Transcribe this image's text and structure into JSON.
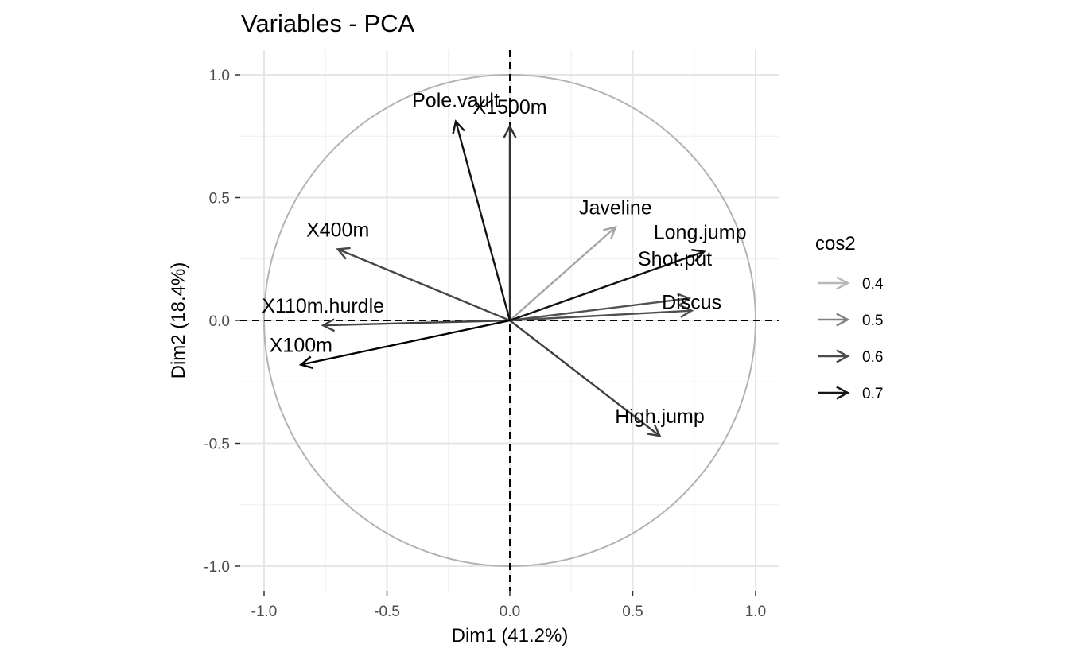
{
  "chart_data": {
    "type": "scatter",
    "title": "Variables - PCA",
    "xlabel": "Dim1 (41.2%)",
    "ylabel": "Dim2 (18.4%)",
    "xlim": [
      -1.1,
      1.1
    ],
    "ylim": [
      -1.1,
      1.1
    ],
    "x_ticks": [
      -1.0,
      -0.5,
      0.0,
      0.5,
      1.0
    ],
    "y_ticks": [
      -1.0,
      -0.5,
      0.0,
      0.5,
      1.0
    ],
    "x_tick_labels": [
      "-1.0",
      "-0.5",
      "0.0",
      "0.5",
      "1.0"
    ],
    "y_tick_labels": [
      "-1.0",
      "-0.5",
      "0.0",
      "0.5",
      "1.0"
    ],
    "grid": true,
    "correlation_circle": true,
    "reference_lines": [
      0,
      0
    ],
    "legend": {
      "title": "cos2",
      "position": "right",
      "entries": [
        {
          "label": "0.4",
          "value": 0.4,
          "color": "#b8b8b8"
        },
        {
          "label": "0.5",
          "value": 0.5,
          "color": "#808080"
        },
        {
          "label": "0.6",
          "value": 0.6,
          "color": "#4a4a4a"
        },
        {
          "label": "0.7",
          "value": 0.7,
          "color": "#161616"
        }
      ]
    },
    "color_scale": {
      "low": 0.15,
      "high": 0.75,
      "low_color": "#ebebeb",
      "high_color": "#000000"
    },
    "variables": [
      {
        "name": "X100m",
        "x": -0.85,
        "y": -0.18,
        "cos2": 0.75
      },
      {
        "name": "Long.jump",
        "x": 0.79,
        "y": 0.28,
        "cos2": 0.71
      },
      {
        "name": "Shot.put",
        "x": 0.73,
        "y": 0.09,
        "cos2": 0.54
      },
      {
        "name": "High.jump",
        "x": 0.61,
        "y": -0.47,
        "cos2": 0.59
      },
      {
        "name": "X400m",
        "x": -0.7,
        "y": 0.29,
        "cos2": 0.57
      },
      {
        "name": "X110m.hurdle",
        "x": -0.76,
        "y": -0.02,
        "cos2": 0.58
      },
      {
        "name": "Discus",
        "x": 0.74,
        "y": 0.04,
        "cos2": 0.55
      },
      {
        "name": "Pole.vault",
        "x": -0.22,
        "y": 0.81,
        "cos2": 0.7
      },
      {
        "name": "Javeline",
        "x": 0.43,
        "y": 0.38,
        "cos2": 0.33
      },
      {
        "name": "X1500m",
        "x": 0.0,
        "y": 0.79,
        "cos2": 0.62
      }
    ]
  }
}
